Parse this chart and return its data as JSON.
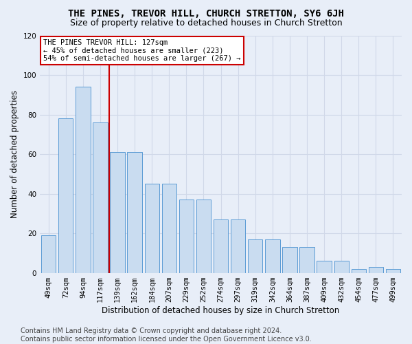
{
  "title": "THE PINES, TREVOR HILL, CHURCH STRETTON, SY6 6JH",
  "subtitle": "Size of property relative to detached houses in Church Stretton",
  "xlabel": "Distribution of detached houses by size in Church Stretton",
  "ylabel": "Number of detached properties",
  "categories": [
    "49sqm",
    "72sqm",
    "94sqm",
    "117sqm",
    "139sqm",
    "162sqm",
    "184sqm",
    "207sqm",
    "229sqm",
    "252sqm",
    "274sqm",
    "297sqm",
    "319sqm",
    "342sqm",
    "364sqm",
    "387sqm",
    "409sqm",
    "432sqm",
    "454sqm",
    "477sqm",
    "499sqm"
  ],
  "values": [
    19,
    78,
    94,
    76,
    61,
    61,
    45,
    45,
    37,
    37,
    27,
    27,
    17,
    17,
    13,
    13,
    6,
    6,
    2,
    3,
    2
  ],
  "bar_color": "#c9dcf0",
  "bar_edge_color": "#5b9bd5",
  "vline_color": "#cc0000",
  "vline_pos": 3.5,
  "annotation_text": "THE PINES TREVOR HILL: 127sqm\n← 45% of detached houses are smaller (223)\n54% of semi-detached houses are larger (267) →",
  "annotation_box_facecolor": "#ffffff",
  "annotation_box_edgecolor": "#cc0000",
  "ylim": [
    0,
    120
  ],
  "yticks": [
    0,
    20,
    40,
    60,
    80,
    100,
    120
  ],
  "grid_color": "#d0d8e8",
  "bg_color": "#e8eef8",
  "footer_line1": "Contains HM Land Registry data © Crown copyright and database right 2024.",
  "footer_line2": "Contains public sector information licensed under the Open Government Licence v3.0.",
  "title_fontsize": 10,
  "subtitle_fontsize": 9,
  "xlabel_fontsize": 8.5,
  "ylabel_fontsize": 8.5,
  "tick_fontsize": 7.5,
  "footer_fontsize": 7,
  "annotation_fontsize": 7.5
}
